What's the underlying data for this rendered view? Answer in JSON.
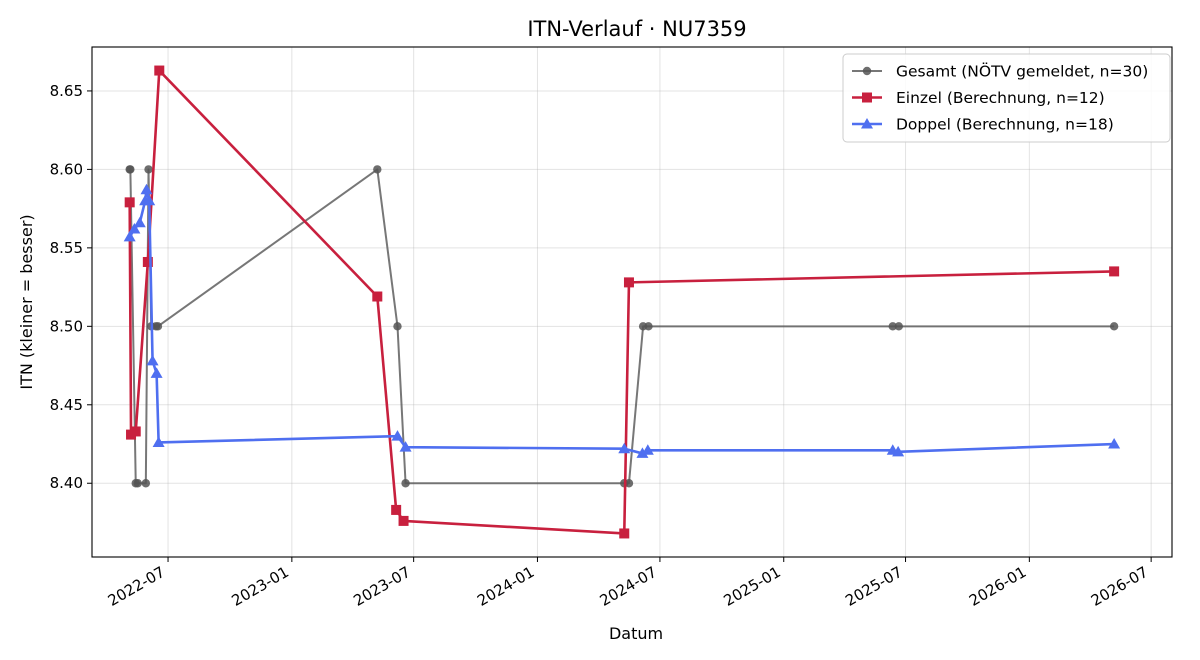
{
  "chart_data": {
    "type": "line",
    "title": "ITN-Verlauf · NU7359",
    "xlabel": "Datum",
    "ylabel": "ITN  (kleiner = besser)",
    "x_axis": {
      "kind": "date",
      "range": [
        "2022-03-10",
        "2026-08-01"
      ],
      "ticks": [
        "2022-07-01",
        "2023-01-01",
        "2023-07-01",
        "2024-01-01",
        "2024-07-01",
        "2025-01-01",
        "2025-07-01",
        "2026-01-01",
        "2026-07-01"
      ],
      "tick_labels": [
        "2022-07",
        "2023-01",
        "2023-07",
        "2024-01",
        "2024-07",
        "2025-01",
        "2025-07",
        "2026-01",
        "2026-07"
      ]
    },
    "y_axis": {
      "range": [
        8.353,
        8.678
      ],
      "ticks": [
        8.4,
        8.45,
        8.5,
        8.55,
        8.6,
        8.65
      ],
      "tick_labels": [
        "8.40",
        "8.45",
        "8.50",
        "8.55",
        "8.60",
        "8.65"
      ]
    },
    "grid": true,
    "legend_position": "top-right",
    "series": [
      {
        "name": "Gesamt (NÖTV gemeldet, n=30)",
        "color": "#555555",
        "marker": "circle",
        "points": [
          {
            "x": "2022-05-05",
            "y": 8.6
          },
          {
            "x": "2022-05-06",
            "y": 8.6
          },
          {
            "x": "2022-05-14",
            "y": 8.4
          },
          {
            "x": "2022-05-17",
            "y": 8.4
          },
          {
            "x": "2022-05-29",
            "y": 8.4
          },
          {
            "x": "2022-06-02",
            "y": 8.6
          },
          {
            "x": "2022-06-06",
            "y": 8.5
          },
          {
            "x": "2022-06-13",
            "y": 8.5
          },
          {
            "x": "2022-06-16",
            "y": 8.5
          },
          {
            "x": "2023-05-08",
            "y": 8.6
          },
          {
            "x": "2023-06-07",
            "y": 8.5
          },
          {
            "x": "2023-06-19",
            "y": 8.4
          },
          {
            "x": "2024-05-09",
            "y": 8.4
          },
          {
            "x": "2024-05-16",
            "y": 8.4
          },
          {
            "x": "2024-06-06",
            "y": 8.5
          },
          {
            "x": "2024-06-14",
            "y": 8.5
          },
          {
            "x": "2025-06-12",
            "y": 8.5
          },
          {
            "x": "2025-06-21",
            "y": 8.5
          },
          {
            "x": "2026-05-07",
            "y": 8.5
          }
        ]
      },
      {
        "name": "Einzel (Berechnung, n=12)",
        "color": "#c8203e",
        "marker": "square",
        "points": [
          {
            "x": "2022-05-05",
            "y": 8.579
          },
          {
            "x": "2022-05-07",
            "y": 8.431
          },
          {
            "x": "2022-05-14",
            "y": 8.433
          },
          {
            "x": "2022-06-01",
            "y": 8.541
          },
          {
            "x": "2022-06-18",
            "y": 8.663
          },
          {
            "x": "2023-05-08",
            "y": 8.519
          },
          {
            "x": "2023-06-05",
            "y": 8.383
          },
          {
            "x": "2023-06-16",
            "y": 8.376
          },
          {
            "x": "2024-05-09",
            "y": 8.368
          },
          {
            "x": "2024-05-16",
            "y": 8.528
          },
          {
            "x": "2026-05-07",
            "y": 8.535
          }
        ]
      },
      {
        "name": "Doppel (Berechnung, n=18)",
        "color": "#4f6ff0",
        "marker": "triangle",
        "points": [
          {
            "x": "2022-05-05",
            "y": 8.557
          },
          {
            "x": "2022-05-12",
            "y": 8.562
          },
          {
            "x": "2022-05-20",
            "y": 8.566
          },
          {
            "x": "2022-05-28",
            "y": 8.58
          },
          {
            "x": "2022-05-30",
            "y": 8.587
          },
          {
            "x": "2022-06-03",
            "y": 8.58
          },
          {
            "x": "2022-06-08",
            "y": 8.478
          },
          {
            "x": "2022-06-14",
            "y": 8.47
          },
          {
            "x": "2022-06-17",
            "y": 8.426
          },
          {
            "x": "2023-06-07",
            "y": 8.43
          },
          {
            "x": "2023-06-19",
            "y": 8.423
          },
          {
            "x": "2024-05-09",
            "y": 8.422
          },
          {
            "x": "2024-06-05",
            "y": 8.419
          },
          {
            "x": "2024-06-13",
            "y": 8.421
          },
          {
            "x": "2025-06-12",
            "y": 8.421
          },
          {
            "x": "2025-06-20",
            "y": 8.42
          },
          {
            "x": "2026-05-07",
            "y": 8.425
          }
        ]
      }
    ]
  }
}
